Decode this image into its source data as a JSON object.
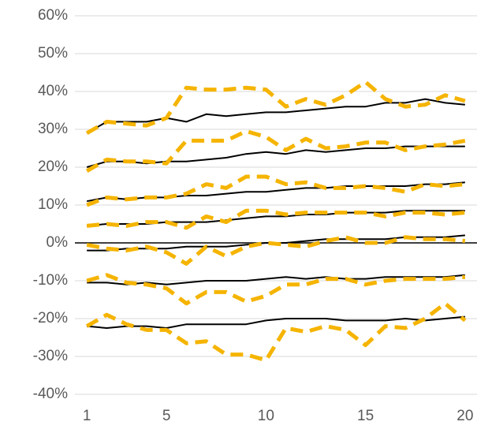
{
  "chart_data": {
    "type": "line",
    "x": [
      1,
      2,
      3,
      4,
      5,
      6,
      7,
      8,
      9,
      10,
      11,
      12,
      13,
      14,
      15,
      16,
      17,
      18,
      19,
      20
    ],
    "xlim": [
      0.4,
      20.6
    ],
    "xticks": [
      1,
      5,
      10,
      15,
      20
    ],
    "ylim": [
      -40,
      60
    ],
    "yticks": [
      {
        "value": -40,
        "label": "-40%"
      },
      {
        "value": -30,
        "label": "-30%"
      },
      {
        "value": -20,
        "label": "-20%"
      },
      {
        "value": -10,
        "label": "-10%"
      },
      {
        "value": 0,
        "label": "0%"
      },
      {
        "value": 10,
        "label": "10%"
      },
      {
        "value": 20,
        "label": "20%"
      },
      {
        "value": 30,
        "label": "30%"
      },
      {
        "value": 40,
        "label": "40%"
      },
      {
        "value": 50,
        "label": "50%"
      },
      {
        "value": 60,
        "label": "60%"
      }
    ],
    "grid": true,
    "series": [
      {
        "color": "#000000",
        "style": "solid",
        "values": [
          29,
          32,
          32,
          32,
          33,
          32,
          34,
          33.5,
          34,
          34.5,
          34.5,
          35,
          35.5,
          36,
          36,
          37,
          37,
          38,
          37,
          36.5
        ]
      },
      {
        "color": "#f5b400",
        "style": "dashed",
        "values": [
          29,
          32,
          31.5,
          31,
          33,
          41,
          40.5,
          40.5,
          41,
          40.5,
          36,
          38,
          36.5,
          39,
          42.5,
          38,
          36,
          36.5,
          39,
          37.5
        ]
      },
      {
        "color": "#000000",
        "style": "solid",
        "values": [
          20,
          21.5,
          21.5,
          21,
          21.5,
          21.5,
          22,
          22.5,
          23.5,
          24,
          23.5,
          24.5,
          24,
          24.5,
          25,
          25,
          25.5,
          25.5,
          25.5,
          25.5
        ]
      },
      {
        "color": "#f5b400",
        "style": "dashed",
        "values": [
          19,
          22,
          21.5,
          21.5,
          21,
          27,
          27,
          27,
          29.5,
          28,
          24.5,
          27.5,
          25,
          25.5,
          26.5,
          26.5,
          24.5,
          25.5,
          26,
          27
        ]
      },
      {
        "color": "#000000",
        "style": "solid",
        "values": [
          11,
          12,
          11.5,
          12,
          12,
          12.5,
          12.5,
          13,
          13.5,
          13.5,
          14,
          14.5,
          14.5,
          15,
          15,
          15,
          15,
          15.5,
          15.5,
          16
        ]
      },
      {
        "color": "#f5b400",
        "style": "dashed",
        "values": [
          10,
          12,
          11.5,
          12,
          12,
          13,
          15.5,
          14.5,
          17.5,
          17.5,
          15.5,
          16,
          14.5,
          14.5,
          15,
          14.5,
          13.5,
          15.5,
          15,
          15.5
        ]
      },
      {
        "color": "#000000",
        "style": "solid",
        "values": [
          4.5,
          5,
          5,
          5,
          5.5,
          5.5,
          5.5,
          6,
          6.5,
          7,
          7,
          7.5,
          7.5,
          8,
          8,
          8,
          8.5,
          8.5,
          8.5,
          8.5
        ]
      },
      {
        "color": "#f5b400",
        "style": "dashed",
        "values": [
          4.5,
          5,
          4.5,
          5.5,
          5.5,
          4,
          7,
          5.5,
          8.5,
          8.5,
          7.5,
          8,
          8,
          8,
          8,
          7,
          8,
          8,
          7.5,
          8
        ]
      },
      {
        "color": "#000000",
        "style": "solid",
        "values": [
          -2,
          -2,
          -1.5,
          -1.5,
          -1.5,
          -1,
          -1,
          -1,
          -0.5,
          0,
          0,
          0.5,
          1,
          1,
          1,
          1,
          1.5,
          1.5,
          1.5,
          2
        ]
      },
      {
        "color": "#f5b400",
        "style": "dashed",
        "values": [
          -0.5,
          -1.5,
          -2,
          -1,
          -2.5,
          -5.5,
          -1,
          -3.5,
          -1,
          0,
          -0.5,
          -1,
          0.5,
          1.5,
          0,
          0,
          1.5,
          1,
          1,
          0.5
        ]
      },
      {
        "color": "#000000",
        "style": "solid",
        "values": [
          -10.5,
          -10.5,
          -11,
          -10.5,
          -11,
          -10.5,
          -10,
          -10,
          -10,
          -9.5,
          -9,
          -9.5,
          -9,
          -9.5,
          -9.5,
          -9,
          -9,
          -9,
          -9,
          -8.5
        ]
      },
      {
        "color": "#f5b400",
        "style": "dashed",
        "values": [
          -10,
          -8.5,
          -10.5,
          -11,
          -12,
          -16,
          -13,
          -13,
          -15.5,
          -14,
          -11,
          -11,
          -9.5,
          -9.5,
          -11,
          -10,
          -9.5,
          -9.5,
          -9.5,
          -9
        ]
      },
      {
        "color": "#000000",
        "style": "solid",
        "values": [
          -22,
          -22.5,
          -22,
          -22,
          -22.5,
          -21.5,
          -21.5,
          -21.5,
          -21.5,
          -20.5,
          -20,
          -20,
          -20,
          -20.5,
          -20.5,
          -20.5,
          -20,
          -20.5,
          -20,
          -19.5
        ]
      },
      {
        "color": "#f5b400",
        "style": "dashed",
        "values": [
          -22,
          -19,
          -21.5,
          -23,
          -23,
          -26.5,
          -26,
          -29.5,
          -29.5,
          -31,
          -22.5,
          -23.5,
          -22,
          -23,
          -27,
          -22,
          -22.5,
          -20,
          -16,
          -20.5
        ]
      }
    ]
  }
}
